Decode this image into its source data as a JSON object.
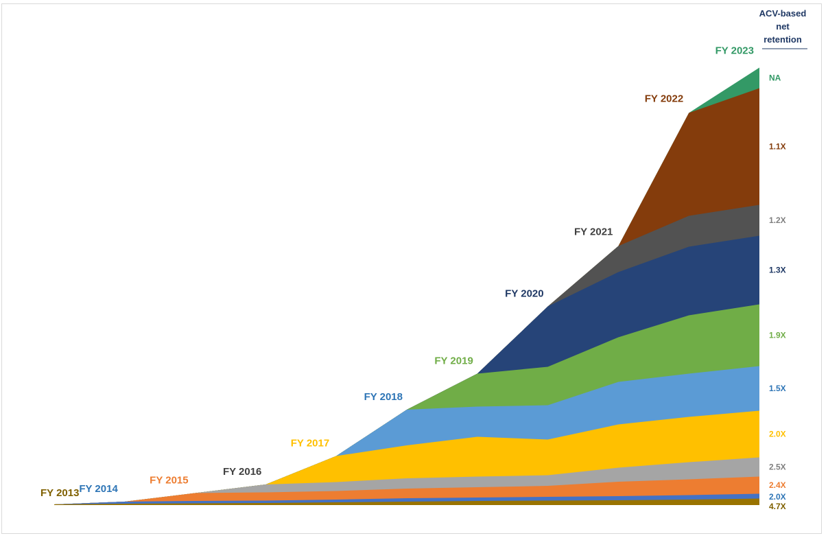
{
  "chart_data": {
    "type": "area",
    "stacked": true,
    "x": [
      0,
      1,
      2,
      3,
      4,
      5,
      6,
      7,
      8,
      9,
      10
    ],
    "ylim": [
      0,
      700
    ],
    "grid": false,
    "legend": "inline-right",
    "retention_header": "ACV-based net retention",
    "series": [
      {
        "name": "FY 2013",
        "start": 0,
        "color": "#997300",
        "label_color": "#7f6000",
        "retention": "4.7X",
        "values": [
          1,
          2,
          2.5,
          3,
          4,
          5,
          6,
          6.5,
          7,
          8,
          9.5
        ]
      },
      {
        "name": "FY 2014",
        "start": 1,
        "color": "#4472c4",
        "label_color": "#2e75b6",
        "retention": "2.0X",
        "values": [
          0,
          3,
          3.5,
          3.5,
          4,
          5,
          5,
          5.5,
          6,
          6.5,
          7
        ]
      },
      {
        "name": "FY 2015",
        "start": 2,
        "color": "#ed7d31",
        "label_color": "#ed7d31",
        "retention": "2.4X",
        "values": [
          0,
          0,
          11.5,
          12,
          12.5,
          14,
          15,
          16,
          21,
          23,
          25
        ]
      },
      {
        "name": "FY 2016",
        "start": 3,
        "color": "#a5a5a5",
        "label_color": "#404040",
        "retention": "2.5X",
        "values": [
          0,
          0,
          0,
          11.5,
          13,
          15,
          15.5,
          15.5,
          20.5,
          25,
          28
        ]
      },
      {
        "name": "FY 2017",
        "start": 4,
        "color": "#ffc000",
        "label_color": "#ffc000",
        "retention": "2.0X",
        "values": [
          0,
          0,
          0,
          0,
          38,
          48,
          58,
          52,
          63,
          66,
          68
        ]
      },
      {
        "name": "FY 2018",
        "start": 5,
        "color": "#5b9bd5",
        "label_color": "#2e75b6",
        "retention": "1.5X",
        "values": [
          0,
          0,
          0,
          0,
          0,
          52,
          44,
          50,
          62,
          63,
          65
        ]
      },
      {
        "name": "FY 2019",
        "start": 6,
        "color": "#70ad47",
        "label_color": "#70ad47",
        "retention": "1.9X",
        "values": [
          0,
          0,
          0,
          0,
          0,
          0,
          48,
          56,
          65,
          85,
          90
        ]
      },
      {
        "name": "FY 2020",
        "start": 7,
        "color": "#264478",
        "label_color": "#1f3864",
        "retention": "1.3X",
        "values": [
          0,
          0,
          0,
          0,
          0,
          0,
          0,
          88,
          95,
          100,
          100
        ]
      },
      {
        "name": "FY 2021",
        "start": 8,
        "color": "#525252",
        "label_color": "#404040",
        "retention": "1.2X",
        "values": [
          0,
          0,
          0,
          0,
          0,
          0,
          0,
          0,
          38,
          45,
          45
        ]
      },
      {
        "name": "FY 2022",
        "start": 9,
        "color": "#843c0c",
        "label_color": "#843c0c",
        "retention": "1.1X",
        "values": [
          0,
          0,
          0,
          0,
          0,
          0,
          0,
          0,
          0,
          150,
          170
        ]
      },
      {
        "name": "FY 2023",
        "start": 10,
        "color": "#339966",
        "label_color": "#339966",
        "retention": "NA",
        "values": [
          0,
          0,
          0,
          0,
          0,
          0,
          0,
          0,
          0,
          0,
          30
        ]
      }
    ]
  }
}
